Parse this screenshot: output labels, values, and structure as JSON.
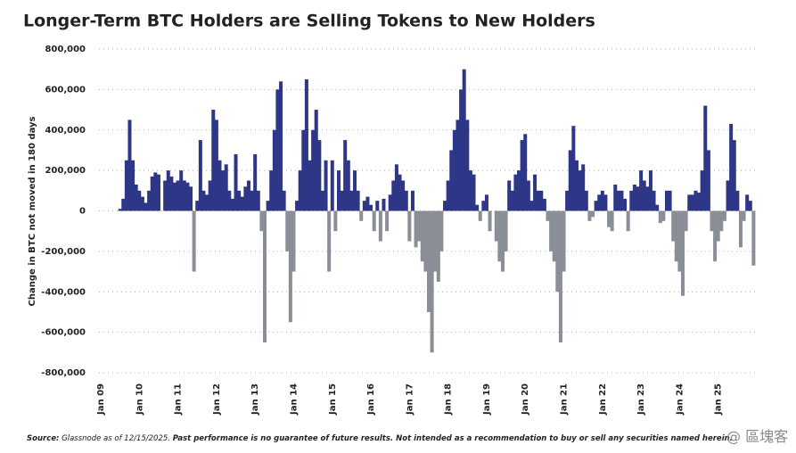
{
  "chart_data": {
    "type": "bar",
    "title": "Longer-Term BTC Holders are Selling Tokens to New Holders",
    "y_label": "Change in BTC not moved in 180 days",
    "source_label": "Source:",
    "source": "Glassnode as of 12/15/2025.",
    "disclaimer": "Past performance is no guarantee of future results. Not intended as a recommendation to buy or sell any securities named herein.",
    "watermark": "@ 區塊客",
    "positive_color": "#2e3787",
    "negative_color": "#8a8f97",
    "grid": true,
    "ylim": [
      -800000,
      800000
    ],
    "yticks": [
      {
        "value": 800000,
        "label": "800,000"
      },
      {
        "value": 600000,
        "label": "600,000"
      },
      {
        "value": 400000,
        "label": "400,000"
      },
      {
        "value": 200000,
        "label": "200,000"
      },
      0,
      {
        "value": -200000,
        "label": "-200,000"
      },
      {
        "value": -400000,
        "label": "-400,000"
      },
      {
        "value": -600000,
        "label": "-600,000"
      },
      {
        "value": -800000,
        "label": "-800,000"
      }
    ],
    "categories": [
      "Jan 09",
      null,
      null,
      null,
      null,
      null,
      null,
      null,
      null,
      null,
      null,
      null,
      "Jan 10",
      null,
      null,
      null,
      null,
      null,
      null,
      null,
      null,
      null,
      null,
      null,
      "Jan 11",
      null,
      null,
      null,
      null,
      null,
      null,
      null,
      null,
      null,
      null,
      null,
      "Jan 12",
      null,
      null,
      null,
      null,
      null,
      null,
      null,
      null,
      null,
      null,
      null,
      "Jan 13",
      null,
      null,
      null,
      null,
      null,
      null,
      null,
      null,
      null,
      null,
      null,
      "Jan 14",
      null,
      null,
      null,
      null,
      null,
      null,
      null,
      null,
      null,
      null,
      null,
      "Jan 15",
      null,
      null,
      null,
      null,
      null,
      null,
      null,
      null,
      null,
      null,
      null,
      "Jan 16",
      null,
      null,
      null,
      null,
      null,
      null,
      null,
      null,
      null,
      null,
      null,
      "Jan 17",
      null,
      null,
      null,
      null,
      null,
      null,
      null,
      null,
      null,
      null,
      null,
      "Jan 18",
      null,
      null,
      null,
      null,
      null,
      null,
      null,
      null,
      null,
      null,
      null,
      "Jan 19",
      null,
      null,
      null,
      null,
      null,
      null,
      null,
      null,
      null,
      null,
      null,
      "Jan 20",
      null,
      null,
      null,
      null,
      null,
      null,
      null,
      null,
      null,
      null,
      null,
      "Jan 21",
      null,
      null,
      null,
      null,
      null,
      null,
      null,
      null,
      null,
      null,
      null,
      "Jan 22",
      null,
      null,
      null,
      null,
      null,
      null,
      null,
      null,
      null,
      null,
      null,
      "Jan 23",
      null,
      null,
      null,
      null,
      null,
      null,
      null,
      null,
      null,
      null,
      null,
      "Jan 24",
      null,
      null,
      null,
      null,
      null,
      null,
      null,
      null,
      null,
      null,
      null,
      "Jan 25",
      null,
      null,
      null,
      null,
      null,
      null,
      null,
      null,
      null,
      null,
      null
    ],
    "values": [
      0,
      0,
      0,
      0,
      0,
      0,
      10000,
      60000,
      250000,
      450000,
      250000,
      130000,
      100000,
      70000,
      40000,
      100000,
      170000,
      190000,
      180000,
      0,
      150000,
      200000,
      170000,
      140000,
      150000,
      200000,
      150000,
      140000,
      120000,
      -300000,
      50000,
      350000,
      100000,
      80000,
      150000,
      500000,
      450000,
      250000,
      200000,
      230000,
      100000,
      60000,
      280000,
      100000,
      70000,
      120000,
      150000,
      100000,
      280000,
      100000,
      -100000,
      -650000,
      50000,
      200000,
      400000,
      600000,
      640000,
      100000,
      -200000,
      -550000,
      -300000,
      50000,
      200000,
      400000,
      650000,
      250000,
      400000,
      500000,
      350000,
      100000,
      250000,
      -300000,
      250000,
      -100000,
      200000,
      100000,
      350000,
      250000,
      100000,
      200000,
      100000,
      -50000,
      50000,
      70000,
      30000,
      -100000,
      50000,
      -150000,
      60000,
      -100000,
      80000,
      150000,
      230000,
      180000,
      150000,
      100000,
      -150000,
      100000,
      -180000,
      -150000,
      -250000,
      -300000,
      -500000,
      -700000,
      -300000,
      -350000,
      -200000,
      50000,
      150000,
      300000,
      400000,
      450000,
      600000,
      700000,
      450000,
      200000,
      180000,
      30000,
      -50000,
      50000,
      80000,
      -100000,
      0,
      -150000,
      -250000,
      -300000,
      -200000,
      150000,
      100000,
      180000,
      200000,
      350000,
      380000,
      150000,
      50000,
      180000,
      100000,
      100000,
      60000,
      -50000,
      -200000,
      -250000,
      -400000,
      -650000,
      -300000,
      100000,
      300000,
      420000,
      250000,
      200000,
      230000,
      100000,
      -50000,
      -30000,
      50000,
      80000,
      100000,
      80000,
      -80000,
      -100000,
      130000,
      100000,
      100000,
      60000,
      -100000,
      100000,
      130000,
      120000,
      200000,
      150000,
      120000,
      200000,
      100000,
      30000,
      -60000,
      -50000,
      100000,
      100000,
      -150000,
      -250000,
      -300000,
      -420000,
      -100000,
      80000,
      80000,
      100000,
      90000,
      200000,
      520000,
      300000,
      -100000,
      -250000,
      -150000,
      -100000,
      -50000,
      150000,
      430000,
      350000,
      100000,
      -180000,
      -50000,
      80000,
      50000,
      -270000
    ]
  }
}
